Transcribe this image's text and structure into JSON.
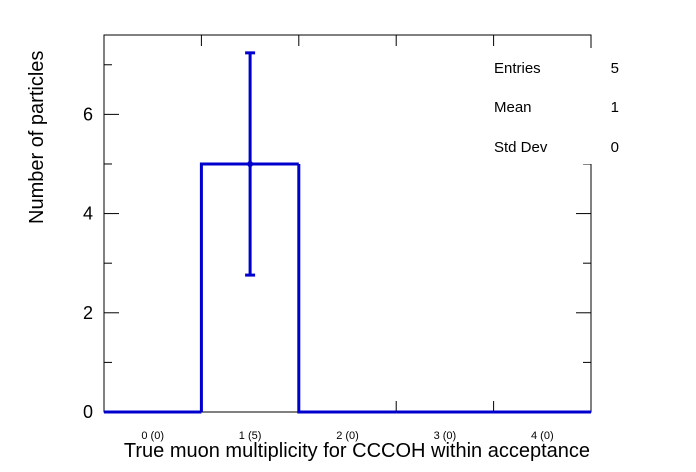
{
  "chart_data": {
    "type": "bar",
    "title": "",
    "xlabel": "True muon multiplicity for CCCOH within acceptance",
    "ylabel": "Number of particles",
    "categories": [
      "0 (0)",
      "1 (5)",
      "2 (0)",
      "3 (0)",
      "4 (0)"
    ],
    "values": [
      0,
      5,
      0,
      0,
      0
    ],
    "error_bars": [
      {
        "category": "1 (5)",
        "value": 5,
        "low": 2.76,
        "high": 7.24
      }
    ],
    "ylim": [
      0,
      7.6
    ],
    "yticks": [
      0,
      2,
      4,
      6
    ],
    "grid": false,
    "legend": "none",
    "series_color": "#0000cc",
    "stats": {
      "entries_label": "Entries",
      "entries_value": "5",
      "mean_label": "Mean",
      "mean_value": "1",
      "stddev_label": "Std Dev",
      "stddev_value": "0"
    }
  }
}
